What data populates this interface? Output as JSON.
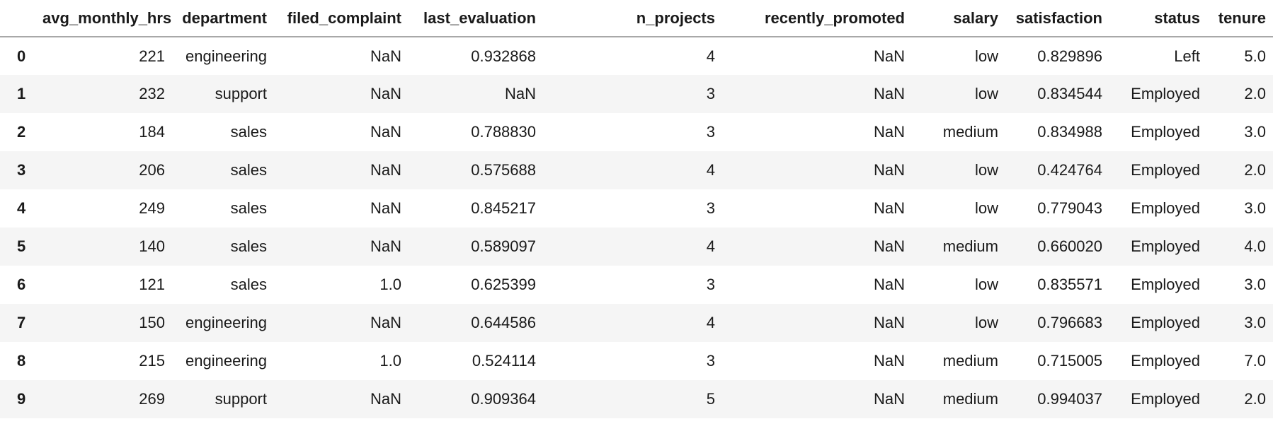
{
  "chart_data": {
    "type": "table",
    "columns": [
      "",
      "avg_monthly_hrs",
      "department",
      "filed_complaint",
      "last_evaluation",
      "n_projects",
      "recently_promoted",
      "salary",
      "satisfaction",
      "status",
      "tenure"
    ],
    "rows": [
      [
        "0",
        "221",
        "engineering",
        "NaN",
        "0.932868",
        "4",
        "NaN",
        "low",
        "0.829896",
        "Left",
        "5.0"
      ],
      [
        "1",
        "232",
        "support",
        "NaN",
        "NaN",
        "3",
        "NaN",
        "low",
        "0.834544",
        "Employed",
        "2.0"
      ],
      [
        "2",
        "184",
        "sales",
        "NaN",
        "0.788830",
        "3",
        "NaN",
        "medium",
        "0.834988",
        "Employed",
        "3.0"
      ],
      [
        "3",
        "206",
        "sales",
        "NaN",
        "0.575688",
        "4",
        "NaN",
        "low",
        "0.424764",
        "Employed",
        "2.0"
      ],
      [
        "4",
        "249",
        "sales",
        "NaN",
        "0.845217",
        "3",
        "NaN",
        "low",
        "0.779043",
        "Employed",
        "3.0"
      ],
      [
        "5",
        "140",
        "sales",
        "NaN",
        "0.589097",
        "4",
        "NaN",
        "medium",
        "0.660020",
        "Employed",
        "4.0"
      ],
      [
        "6",
        "121",
        "sales",
        "1.0",
        "0.625399",
        "3",
        "NaN",
        "low",
        "0.835571",
        "Employed",
        "3.0"
      ],
      [
        "7",
        "150",
        "engineering",
        "NaN",
        "0.644586",
        "4",
        "NaN",
        "low",
        "0.796683",
        "Employed",
        "3.0"
      ],
      [
        "8",
        "215",
        "engineering",
        "1.0",
        "0.524114",
        "3",
        "NaN",
        "medium",
        "0.715005",
        "Employed",
        "7.0"
      ],
      [
        "9",
        "269",
        "support",
        "NaN",
        "0.909364",
        "5",
        "NaN",
        "medium",
        "0.994037",
        "Employed",
        "2.0"
      ]
    ],
    "layout": {
      "header_bold": true,
      "row_striping": "alternate",
      "cell_alignment": "right",
      "index_alignment": "left",
      "grid": "header-rule-only"
    }
  },
  "colors": {
    "background": "#ffffff",
    "stripe": "#f5f5f5",
    "header_rule": "#a8a8a8",
    "text": "#1a1a1a"
  }
}
